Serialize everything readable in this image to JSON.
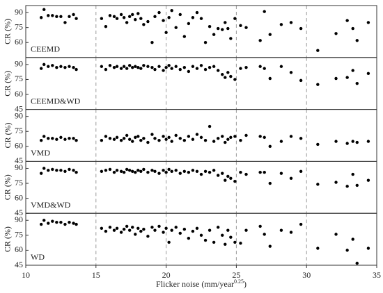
{
  "chart_data": [
    {
      "type": "scatter",
      "label": "CEEMD",
      "ylabel": "CR (%)",
      "color": "#000000",
      "x": [
        11.1,
        11.3,
        11.6,
        11.9,
        12.2,
        12.5,
        12.8,
        13.1,
        13.4,
        13.6,
        15.4,
        15.7,
        16.0,
        16.3,
        16.5,
        16.8,
        17.0,
        17.2,
        17.4,
        17.6,
        17.8,
        18.0,
        18.2,
        18.4,
        18.7,
        19.0,
        19.2,
        19.5,
        19.8,
        20.0,
        20.2,
        20.4,
        20.7,
        21.0,
        21.3,
        21.6,
        21.9,
        22.2,
        22.5,
        22.8,
        23.1,
        23.4,
        23.7,
        24.0,
        24.2,
        24.4,
        24.6,
        24.9,
        25.3,
        25.7,
        26.7,
        27.0,
        27.4,
        28.2,
        28.9,
        29.6,
        30.8,
        32.1,
        32.9,
        33.3,
        33.6,
        34.4
      ],
      "y": [
        85,
        93,
        87,
        87,
        86,
        86,
        80,
        86,
        88,
        84,
        84,
        76,
        87,
        86,
        84,
        88,
        85,
        80,
        86,
        88,
        83,
        89,
        84,
        78,
        81,
        60,
        86,
        90,
        82,
        70,
        85,
        92,
        75,
        88,
        66,
        79,
        85,
        90,
        84,
        60,
        76,
        68,
        74,
        73,
        80,
        74,
        64,
        84,
        77,
        75,
        62,
        91,
        68,
        78,
        80,
        74,
        52,
        69,
        82,
        74,
        62,
        80
      ],
      "xlim": [
        10,
        35
      ],
      "xticks": [
        10,
        15,
        20,
        25,
        30,
        35
      ],
      "ylim": [
        45,
        97
      ],
      "yticks": [
        60,
        75,
        90
      ],
      "grid": true
    },
    {
      "type": "scatter",
      "label": "CEEMD&WD",
      "ylabel": "CR (%)",
      "color": "#000000",
      "x": [
        11.1,
        11.3,
        11.6,
        11.9,
        12.2,
        12.5,
        12.8,
        13.1,
        13.4,
        13.6,
        15.4,
        15.7,
        16.0,
        16.3,
        16.5,
        16.8,
        17.0,
        17.2,
        17.4,
        17.6,
        17.8,
        18.0,
        18.2,
        18.4,
        18.7,
        19.0,
        19.2,
        19.5,
        19.8,
        20.0,
        20.2,
        20.4,
        20.7,
        21.0,
        21.3,
        21.6,
        21.9,
        22.2,
        22.5,
        22.8,
        23.1,
        23.4,
        23.7,
        24.0,
        24.2,
        24.4,
        24.6,
        24.9,
        25.3,
        25.7,
        26.7,
        27.0,
        27.4,
        28.2,
        28.9,
        29.6,
        30.8,
        32.1,
        32.9,
        33.3,
        33.6,
        34.4
      ],
      "y": [
        86,
        90,
        88,
        89,
        87,
        88,
        87,
        88,
        87,
        85,
        88,
        85,
        89,
        87,
        88,
        86,
        88,
        86,
        89,
        87,
        88,
        87,
        86,
        89,
        88,
        87,
        85,
        88,
        84,
        87,
        89,
        86,
        88,
        85,
        87,
        83,
        88,
        86,
        89,
        85,
        87,
        88,
        84,
        80,
        77,
        82,
        78,
        75,
        86,
        87,
        88,
        86,
        76,
        88,
        82,
        74,
        70,
        76,
        77,
        84,
        71,
        81
      ],
      "xlim": [
        10,
        35
      ],
      "xticks": [
        10,
        15,
        20,
        25,
        30,
        35
      ],
      "ylim": [
        45,
        97
      ],
      "yticks": [
        45,
        60,
        75,
        90
      ],
      "grid": true
    },
    {
      "type": "scatter",
      "label": "VMD",
      "ylabel": "CR (%)",
      "color": "#000000",
      "x": [
        11.1,
        11.3,
        11.6,
        11.9,
        12.2,
        12.5,
        12.8,
        13.1,
        13.4,
        13.6,
        15.4,
        15.7,
        16.0,
        16.3,
        16.5,
        16.8,
        17.0,
        17.2,
        17.4,
        17.6,
        17.8,
        18.0,
        18.2,
        18.4,
        18.7,
        19.0,
        19.2,
        19.5,
        19.8,
        20.0,
        20.2,
        20.4,
        20.7,
        21.0,
        21.3,
        21.6,
        21.9,
        22.2,
        22.5,
        22.8,
        23.1,
        23.4,
        23.7,
        24.0,
        24.2,
        24.4,
        24.6,
        24.9,
        25.3,
        25.7,
        26.7,
        27.0,
        27.4,
        28.2,
        28.9,
        29.6,
        30.8,
        32.1,
        32.9,
        33.3,
        33.6,
        34.4
      ],
      "y": [
        66,
        70,
        68,
        68,
        67,
        69,
        67,
        68,
        68,
        66,
        66,
        70,
        68,
        67,
        69,
        66,
        68,
        71,
        67,
        65,
        69,
        70,
        66,
        68,
        64,
        72,
        68,
        66,
        70,
        67,
        69,
        65,
        71,
        68,
        66,
        70,
        67,
        72,
        69,
        66,
        80,
        65,
        68,
        70,
        64,
        67,
        69,
        70,
        66,
        71,
        70,
        69,
        60,
        65,
        70,
        68,
        62,
        65,
        63,
        65,
        64,
        65
      ],
      "xlim": [
        10,
        35
      ],
      "xticks": [
        10,
        15,
        20,
        25,
        30,
        35
      ],
      "ylim": [
        45,
        97
      ],
      "yticks": [
        45,
        60,
        75,
        90
      ],
      "grid": true
    },
    {
      "type": "scatter",
      "label": "VMD&WD",
      "ylabel": "CR (%)",
      "color": "#000000",
      "x": [
        11.1,
        11.3,
        11.6,
        11.9,
        12.2,
        12.5,
        12.8,
        13.1,
        13.4,
        13.6,
        15.4,
        15.7,
        16.0,
        16.3,
        16.5,
        16.8,
        17.0,
        17.2,
        17.4,
        17.6,
        17.8,
        18.0,
        18.2,
        18.4,
        18.7,
        19.0,
        19.2,
        19.5,
        19.8,
        20.0,
        20.2,
        20.4,
        20.7,
        21.0,
        21.3,
        21.6,
        21.9,
        22.2,
        22.5,
        22.8,
        23.1,
        23.4,
        23.7,
        24.0,
        24.2,
        24.4,
        24.6,
        24.9,
        25.3,
        25.7,
        26.7,
        27.0,
        27.4,
        28.2,
        28.9,
        29.6,
        30.8,
        32.1,
        32.9,
        33.3,
        33.6,
        34.4
      ],
      "y": [
        85,
        90,
        88,
        89,
        88,
        88,
        87,
        89,
        88,
        86,
        87,
        88,
        89,
        86,
        88,
        87,
        86,
        89,
        88,
        87,
        86,
        88,
        87,
        89,
        86,
        88,
        87,
        85,
        88,
        86,
        89,
        87,
        88,
        85,
        87,
        86,
        88,
        87,
        84,
        87,
        86,
        88,
        83,
        85,
        78,
        82,
        80,
        77,
        86,
        84,
        86,
        86,
        75,
        85,
        80,
        87,
        74,
        76,
        72,
        84,
        73,
        78
      ],
      "xlim": [
        10,
        35
      ],
      "xticks": [
        10,
        15,
        20,
        25,
        30,
        35
      ],
      "ylim": [
        45,
        97
      ],
      "yticks": [
        45,
        60,
        75,
        90
      ],
      "grid": true
    },
    {
      "type": "scatter",
      "label": "WD",
      "ylabel": "CR (%)",
      "color": "#000000",
      "x": [
        11.1,
        11.3,
        11.6,
        11.9,
        12.2,
        12.5,
        12.8,
        13.1,
        13.4,
        13.6,
        15.4,
        15.7,
        16.0,
        16.3,
        16.5,
        16.8,
        17.0,
        17.2,
        17.4,
        17.6,
        17.8,
        18.0,
        18.2,
        18.4,
        18.7,
        19.0,
        19.2,
        19.5,
        19.8,
        20.0,
        20.2,
        20.4,
        20.7,
        21.0,
        21.3,
        21.6,
        21.9,
        22.2,
        22.5,
        22.8,
        23.1,
        23.4,
        23.7,
        24.0,
        24.2,
        24.4,
        24.6,
        24.9,
        25.3,
        25.7,
        26.7,
        27.0,
        27.4,
        28.2,
        28.9,
        29.6,
        30.8,
        32.1,
        32.9,
        33.3,
        33.6,
        34.4
      ],
      "y": [
        86,
        90,
        87,
        89,
        88,
        88,
        86,
        88,
        87,
        86,
        82,
        79,
        83,
        80,
        82,
        78,
        81,
        84,
        80,
        83,
        76,
        82,
        79,
        81,
        74,
        83,
        80,
        84,
        78,
        82,
        68,
        80,
        83,
        77,
        81,
        72,
        79,
        82,
        75,
        70,
        80,
        68,
        83,
        75,
        66,
        80,
        73,
        68,
        67,
        80,
        84,
        76,
        64,
        80,
        78,
        86,
        62,
        76,
        60,
        71,
        47,
        62
      ],
      "xlim": [
        10,
        35
      ],
      "xticks": [
        10,
        15,
        20,
        25,
        30,
        35
      ],
      "ylim": [
        45,
        97
      ],
      "yticks": [
        45,
        60,
        75,
        90
      ],
      "grid": true,
      "xlabel": [
        "Flicker noise (mm/year",
        "0.25",
        ")"
      ]
    }
  ]
}
